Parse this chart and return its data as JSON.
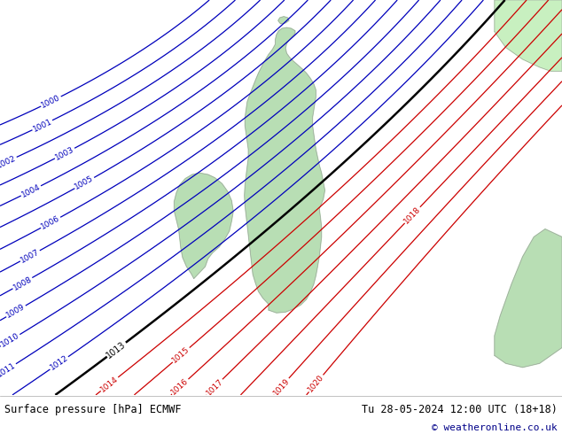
{
  "title_left": "Surface pressure [hPa] ECMWF",
  "title_right": "Tu 28-05-2024 12:00 UTC (18+18)",
  "copyright": "© weatheronline.co.uk",
  "bg_sea": "#d4d4dc",
  "land_color": "#b8deb4",
  "land_color_bright": "#c8f0c0",
  "border_color": "#999999",
  "blue_color": "#0000bb",
  "red_color": "#cc0000",
  "black_color": "#000000",
  "white_color": "#ffffff",
  "figsize": [
    6.34,
    4.9
  ],
  "dpi": 100,
  "blue_levels": [
    1000,
    1001,
    1002,
    1003,
    1004,
    1005,
    1006,
    1007,
    1008,
    1009,
    1010,
    1011,
    1012
  ],
  "black_levels": [
    1013
  ],
  "red_levels": [
    1014,
    1015,
    1016,
    1017,
    1018,
    1019,
    1020
  ]
}
